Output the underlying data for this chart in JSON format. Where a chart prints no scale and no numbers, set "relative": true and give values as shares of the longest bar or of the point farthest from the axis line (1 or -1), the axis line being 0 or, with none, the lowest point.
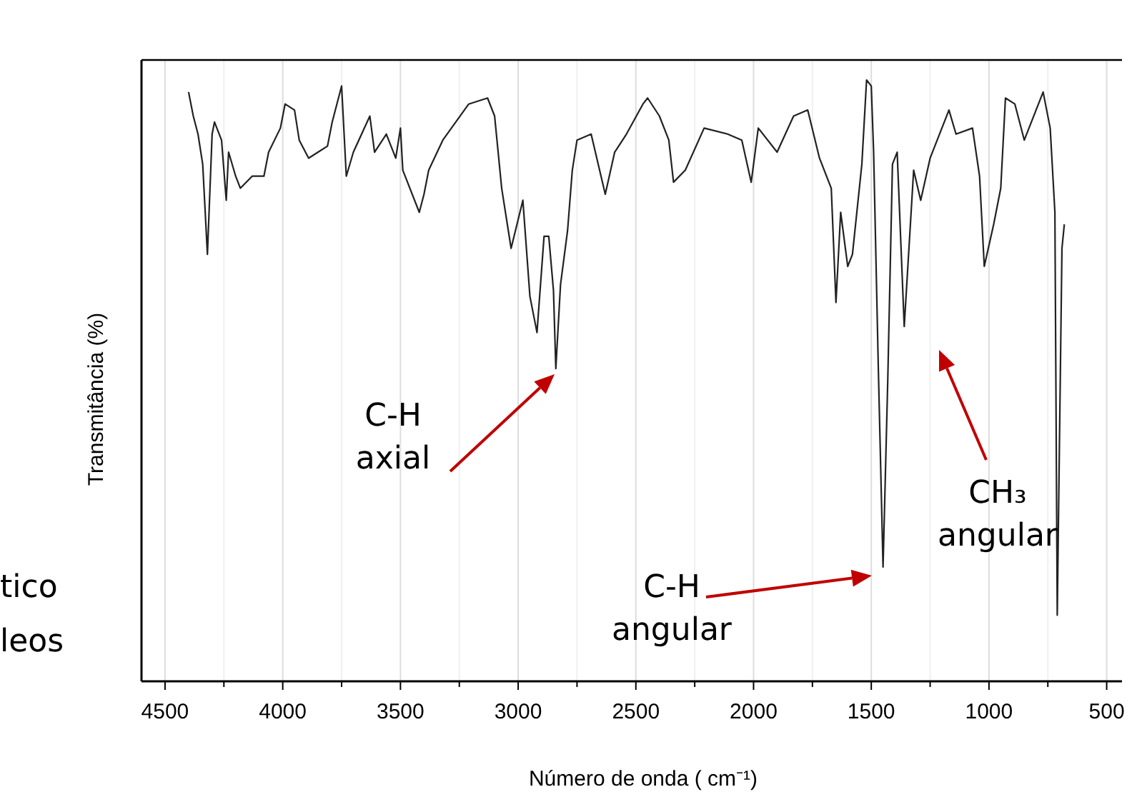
{
  "chart_data": {
    "type": "line",
    "relative": true,
    "xlabel": "Número de onda ( cm⁻¹)",
    "ylabel": "Transmitância (%)",
    "xlim": [
      4600,
      435
    ],
    "xticks": [
      4500,
      4000,
      3500,
      3000,
      2500,
      2000,
      1500,
      1000,
      500
    ],
    "grid": "x",
    "line_style": "solid",
    "series": [
      {
        "color": "#222222",
        "x": [
          4400,
          4380,
          4360,
          4340,
          4320,
          4300,
          4290,
          4260,
          4240,
          4230,
          4200,
          4180,
          4130,
          4080,
          4060,
          4010,
          3990,
          3950,
          3930,
          3890,
          3850,
          3810,
          3790,
          3750,
          3730,
          3700,
          3630,
          3610,
          3560,
          3520,
          3500,
          3490,
          3420,
          3400,
          3380,
          3320,
          3210,
          3130,
          3100,
          3070,
          3030,
          2980,
          2950,
          2920,
          2890,
          2870,
          2850,
          2840,
          2820,
          2790,
          2770,
          2750,
          2690,
          2630,
          2590,
          2540,
          2470,
          2450,
          2400,
          2360,
          2340,
          2290,
          2210,
          2110,
          2050,
          2010,
          1980,
          1900,
          1830,
          1770,
          1720,
          1670,
          1650,
          1630,
          1600,
          1580,
          1540,
          1520,
          1500,
          1490,
          1470,
          1450,
          1430,
          1410,
          1390,
          1360,
          1320,
          1290,
          1250,
          1170,
          1140,
          1070,
          1040,
          1020,
          980,
          950,
          930,
          890,
          850,
          770,
          740,
          720,
          710,
          690,
          680
        ],
        "values": [
          0.98,
          0.94,
          0.91,
          0.86,
          0.71,
          0.91,
          0.93,
          0.9,
          0.8,
          0.88,
          0.84,
          0.82,
          0.84,
          0.84,
          0.88,
          0.92,
          0.96,
          0.95,
          0.9,
          0.87,
          0.88,
          0.89,
          0.93,
          0.99,
          0.84,
          0.88,
          0.94,
          0.88,
          0.91,
          0.87,
          0.92,
          0.85,
          0.78,
          0.81,
          0.85,
          0.9,
          0.96,
          0.97,
          0.94,
          0.82,
          0.72,
          0.8,
          0.64,
          0.58,
          0.74,
          0.74,
          0.65,
          0.52,
          0.66,
          0.75,
          0.85,
          0.9,
          0.91,
          0.81,
          0.88,
          0.91,
          0.96,
          0.97,
          0.94,
          0.9,
          0.83,
          0.85,
          0.92,
          0.91,
          0.9,
          0.83,
          0.92,
          0.88,
          0.94,
          0.95,
          0.87,
          0.82,
          0.63,
          0.78,
          0.69,
          0.71,
          0.86,
          1.0,
          0.99,
          0.88,
          0.52,
          0.19,
          0.5,
          0.86,
          0.88,
          0.59,
          0.85,
          0.8,
          0.87,
          0.95,
          0.91,
          0.92,
          0.84,
          0.69,
          0.76,
          0.82,
          0.97,
          0.96,
          0.9,
          0.98,
          0.92,
          0.78,
          0.11,
          0.72,
          0.76
        ]
      }
    ],
    "annotations": [
      "C-H axial",
      "C-H angular",
      "CH₃ angular",
      "tico",
      "leos"
    ]
  }
}
